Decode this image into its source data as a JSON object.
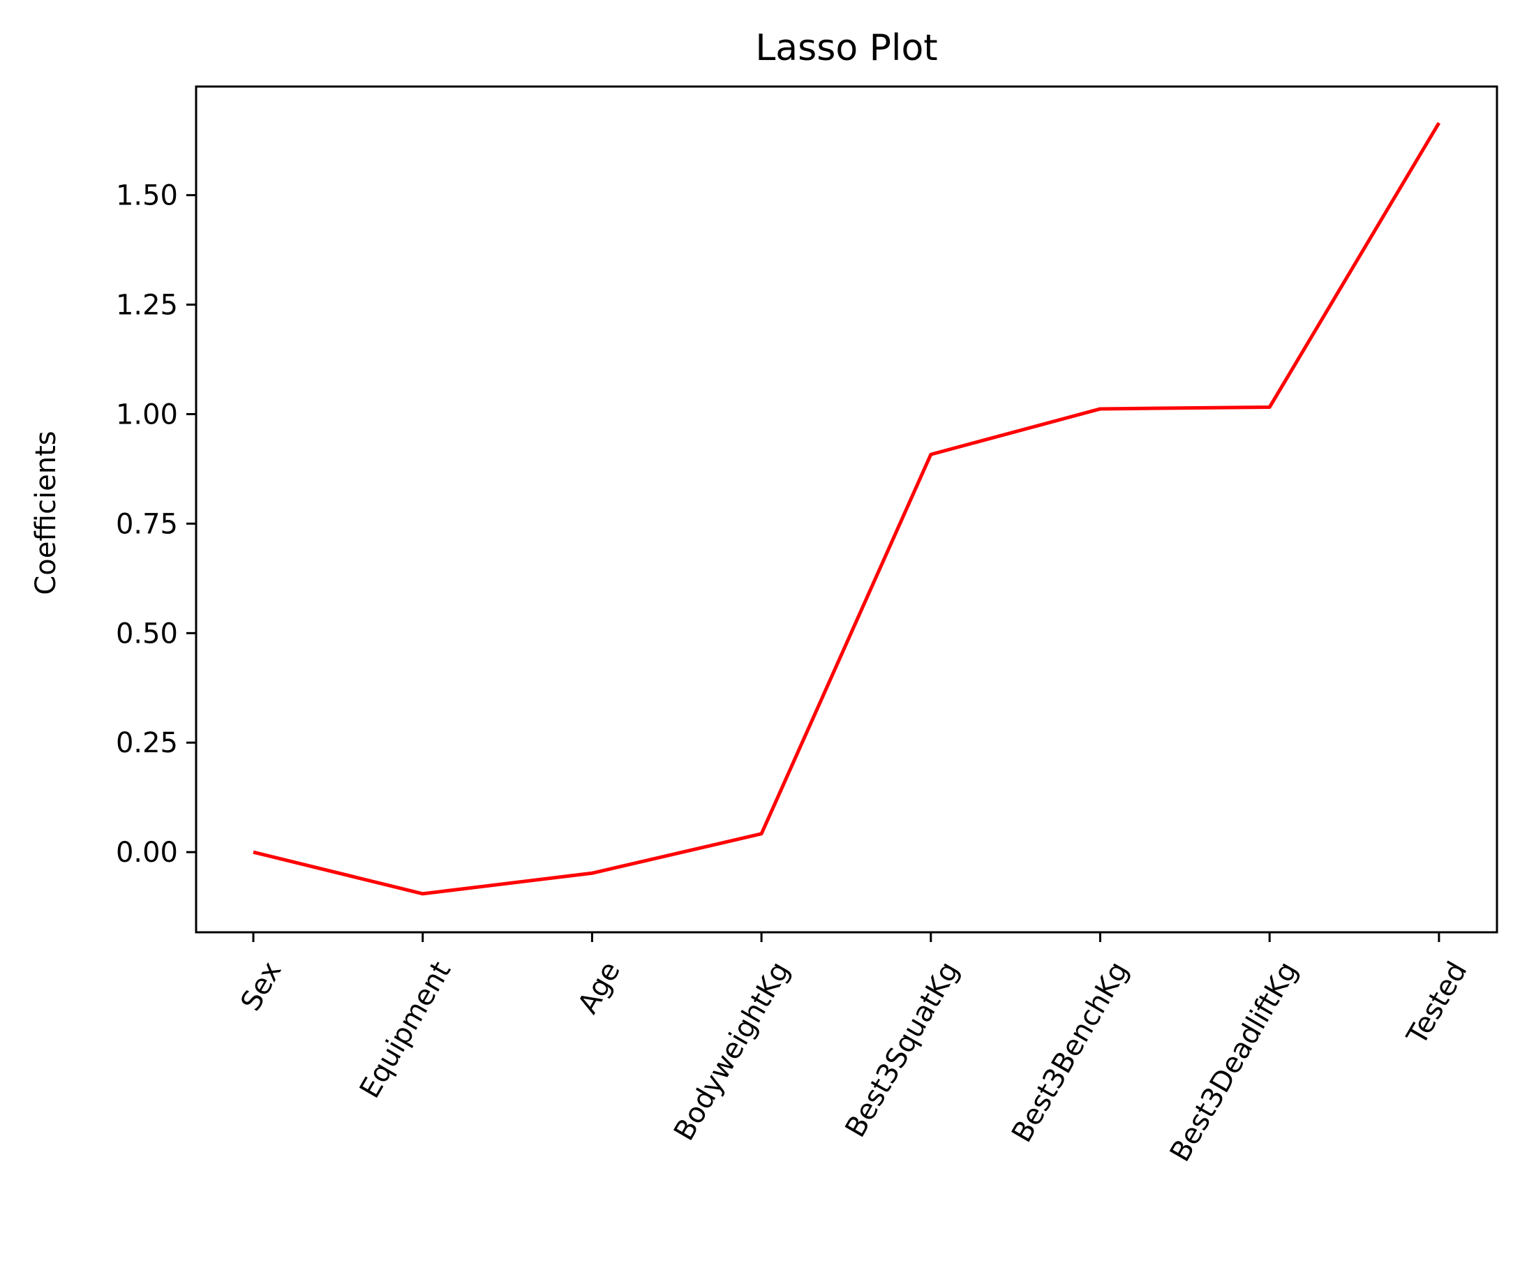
{
  "chart_data": {
    "type": "line",
    "title": "Lasso Plot",
    "xlabel": "",
    "ylabel": "Coefficients",
    "categories": [
      "Sex",
      "Equipment",
      "Age",
      "BodyweightKg",
      "Best3SquatKg",
      "Best3BenchKg",
      "Best3DeadliftKg",
      "Tested"
    ],
    "series": [
      {
        "color": "#ff0000",
        "values": [
          0.0,
          -0.095,
          -0.048,
          0.042,
          0.908,
          1.012,
          1.016,
          1.665
        ]
      }
    ],
    "yticks": [
      "0.00",
      "0.25",
      "0.50",
      "0.75",
      "1.00",
      "1.25",
      "1.50"
    ],
    "ytick_values": [
      0.0,
      0.25,
      0.5,
      0.75,
      1.0,
      1.25,
      1.5
    ],
    "ylim": [
      -0.183,
      1.748
    ],
    "grid": false,
    "xtick_rotation_deg": 60
  }
}
